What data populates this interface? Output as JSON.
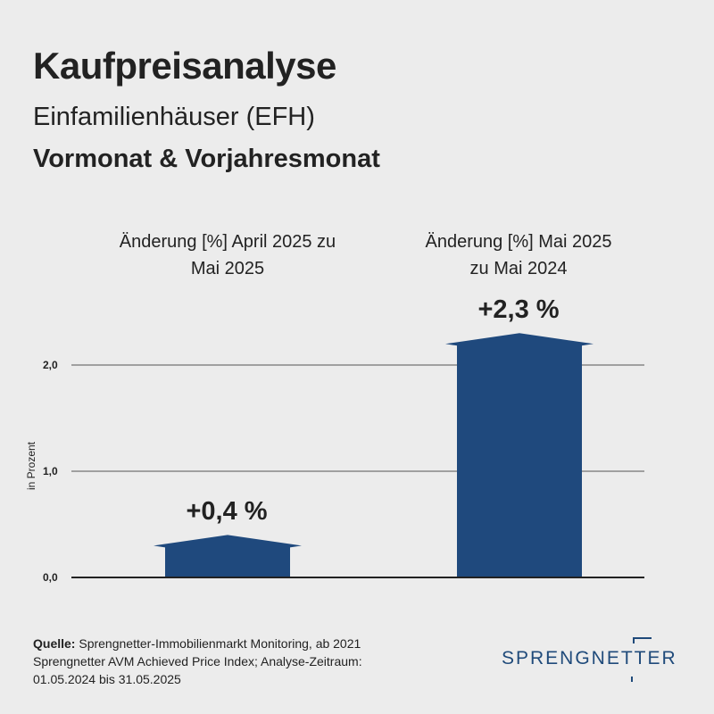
{
  "header": {
    "title": "Kaufpreisanalyse",
    "subtitle": "Einfamilienhäuser (EFH)",
    "subtitle2": "Vormonat & Vorjahresmonat"
  },
  "chart_data": {
    "type": "bar",
    "categories": [
      "Änderung [%] April 2025 zu Mai 2025",
      "Änderung [%] Mai 2025 zu Mai 2024"
    ],
    "category_lines": [
      [
        "Änderung [%] April 2025 zu",
        "Mai 2025"
      ],
      [
        "Änderung [%] Mai 2025",
        "zu Mai 2024"
      ]
    ],
    "values": [
      0.4,
      2.3
    ],
    "data_labels": [
      "+0,4 %",
      "+2,3 %"
    ],
    "ylabel": "in Prozent",
    "ylim": [
      0,
      2.3
    ],
    "yticks": [
      0,
      1,
      2
    ],
    "ytick_labels": [
      "0,0",
      "1,0",
      "2,0"
    ],
    "grid": true,
    "bar_color": "#1f497d"
  },
  "footer": {
    "source_label": "Quelle:",
    "source_text": " Sprengnetter-Immobilienmarkt Monitoring, ab 2021 Sprengnetter AVM Achieved Price Index; Analyse-Zeitraum: 01.05.2024 bis 31.05.2025",
    "logo_text": "SPRENGNETTER"
  },
  "colors": {
    "background": "#ececec",
    "bar": "#1f497d",
    "brand": "#1f4a7a",
    "grid": "#555555"
  }
}
